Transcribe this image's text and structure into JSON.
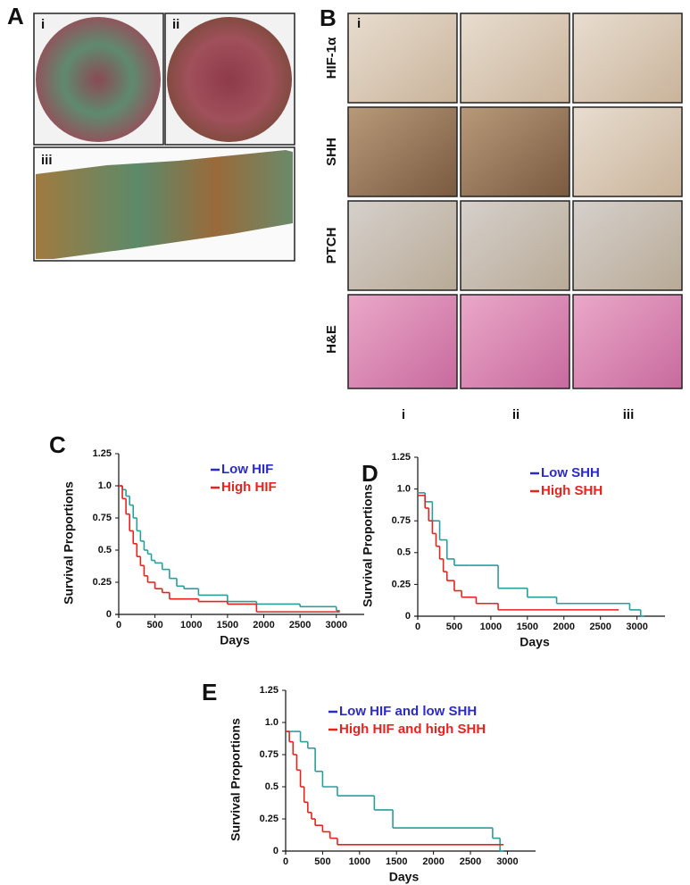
{
  "panel_a": {
    "letter": "A",
    "labels": [
      "i",
      "ii",
      "iii"
    ]
  },
  "panel_b": {
    "letter": "B",
    "cell_label": "i",
    "rows": [
      "HIF-1α",
      "SHH",
      "PTCH",
      "H&E"
    ],
    "columns": [
      "i",
      "ii",
      "iii"
    ]
  },
  "chart_data": [
    {
      "type": "step",
      "title": "C",
      "x_label": "Days",
      "y_label": "Survival  Proportions",
      "xlim": [
        0,
        3200
      ],
      "xticks": [
        0,
        500,
        1000,
        1500,
        2000,
        2500,
        3000
      ],
      "ylim": [
        0,
        1.25
      ],
      "yticks": [
        0,
        0.25,
        0.5,
        0.75,
        {
          "value": 1,
          "label": "1.0"
        },
        1.25
      ],
      "series": [
        {
          "name": "Low HIF",
          "color": "#2a9d9d",
          "legend_color": "#2b2bc8",
          "x": [
            0,
            50,
            100,
            150,
            200,
            250,
            300,
            350,
            400,
            450,
            500,
            600,
            700,
            800,
            900,
            1100,
            1500,
            1900,
            2500,
            3000
          ],
          "values": [
            1.0,
            0.97,
            0.92,
            0.85,
            0.75,
            0.65,
            0.57,
            0.5,
            0.47,
            0.42,
            0.4,
            0.35,
            0.28,
            0.22,
            0.2,
            0.15,
            0.1,
            0.08,
            0.06,
            0.03
          ]
        },
        {
          "name": "High HIF",
          "color": "#e8231f",
          "legend_color": "#e8231f",
          "x": [
            0,
            50,
            100,
            150,
            200,
            250,
            300,
            350,
            400,
            500,
            600,
            700,
            1100,
            1500,
            1900,
            3000
          ],
          "values": [
            1.0,
            0.9,
            0.78,
            0.65,
            0.55,
            0.45,
            0.38,
            0.3,
            0.25,
            0.2,
            0.17,
            0.12,
            0.1,
            0.08,
            0.02,
            0.02
          ]
        }
      ]
    },
    {
      "type": "step",
      "title": "D",
      "x_label": "Days",
      "y_label": "Survival Proportions",
      "xlim": [
        0,
        3200
      ],
      "xticks": [
        0,
        500,
        1000,
        1500,
        2000,
        2500,
        3000
      ],
      "ylim": [
        0,
        1.25
      ],
      "yticks": [
        0,
        0.25,
        0.5,
        0.75,
        {
          "value": 1,
          "label": "1.0"
        },
        1.25
      ],
      "series": [
        {
          "name": "Low SHH",
          "color": "#2a9d9d",
          "legend_color": "#2b2bc8",
          "x": [
            0,
            100,
            200,
            300,
            400,
            500,
            700,
            1100,
            1500,
            1900,
            2900,
            3050
          ],
          "values": [
            0.97,
            0.9,
            0.75,
            0.6,
            0.45,
            0.4,
            0.4,
            0.22,
            0.15,
            0.1,
            0.05,
            0.0
          ]
        },
        {
          "name": "High SHH",
          "color": "#e8231f",
          "legend_color": "#e8231f",
          "x": [
            0,
            100,
            150,
            200,
            250,
            300,
            350,
            400,
            500,
            600,
            800,
            1100,
            2700
          ],
          "values": [
            0.95,
            0.85,
            0.75,
            0.65,
            0.55,
            0.45,
            0.35,
            0.28,
            0.2,
            0.15,
            0.1,
            0.05,
            0.05
          ]
        }
      ]
    },
    {
      "type": "step",
      "title": "E",
      "x_label": "Days",
      "y_label": "Survival Proportions",
      "xlim": [
        0,
        3200
      ],
      "xticks": [
        0,
        500,
        1000,
        1500,
        2000,
        2500,
        3000
      ],
      "ylim": [
        0,
        1.25
      ],
      "yticks": [
        0,
        0.25,
        0.5,
        0.75,
        {
          "value": 1,
          "label": "1.0"
        },
        1.25
      ],
      "series": [
        {
          "name": "Low HIF and low SHH",
          "color": "#2a9d9d",
          "legend_color": "#2b2bc8",
          "x": [
            0,
            100,
            200,
            300,
            400,
            500,
            700,
            1200,
            1450,
            2800,
            2900
          ],
          "values": [
            0.93,
            0.93,
            0.85,
            0.8,
            0.62,
            0.5,
            0.43,
            0.32,
            0.18,
            0.1,
            0.0
          ]
        },
        {
          "name": "High HIF and high SHH",
          "color": "#e8231f",
          "legend_color": "#e8231f",
          "x": [
            0,
            50,
            100,
            150,
            200,
            250,
            300,
            350,
            400,
            500,
            600,
            700,
            2900
          ],
          "values": [
            0.93,
            0.85,
            0.75,
            0.63,
            0.5,
            0.38,
            0.3,
            0.25,
            0.2,
            0.15,
            0.1,
            0.05,
            0.05
          ]
        }
      ]
    }
  ]
}
